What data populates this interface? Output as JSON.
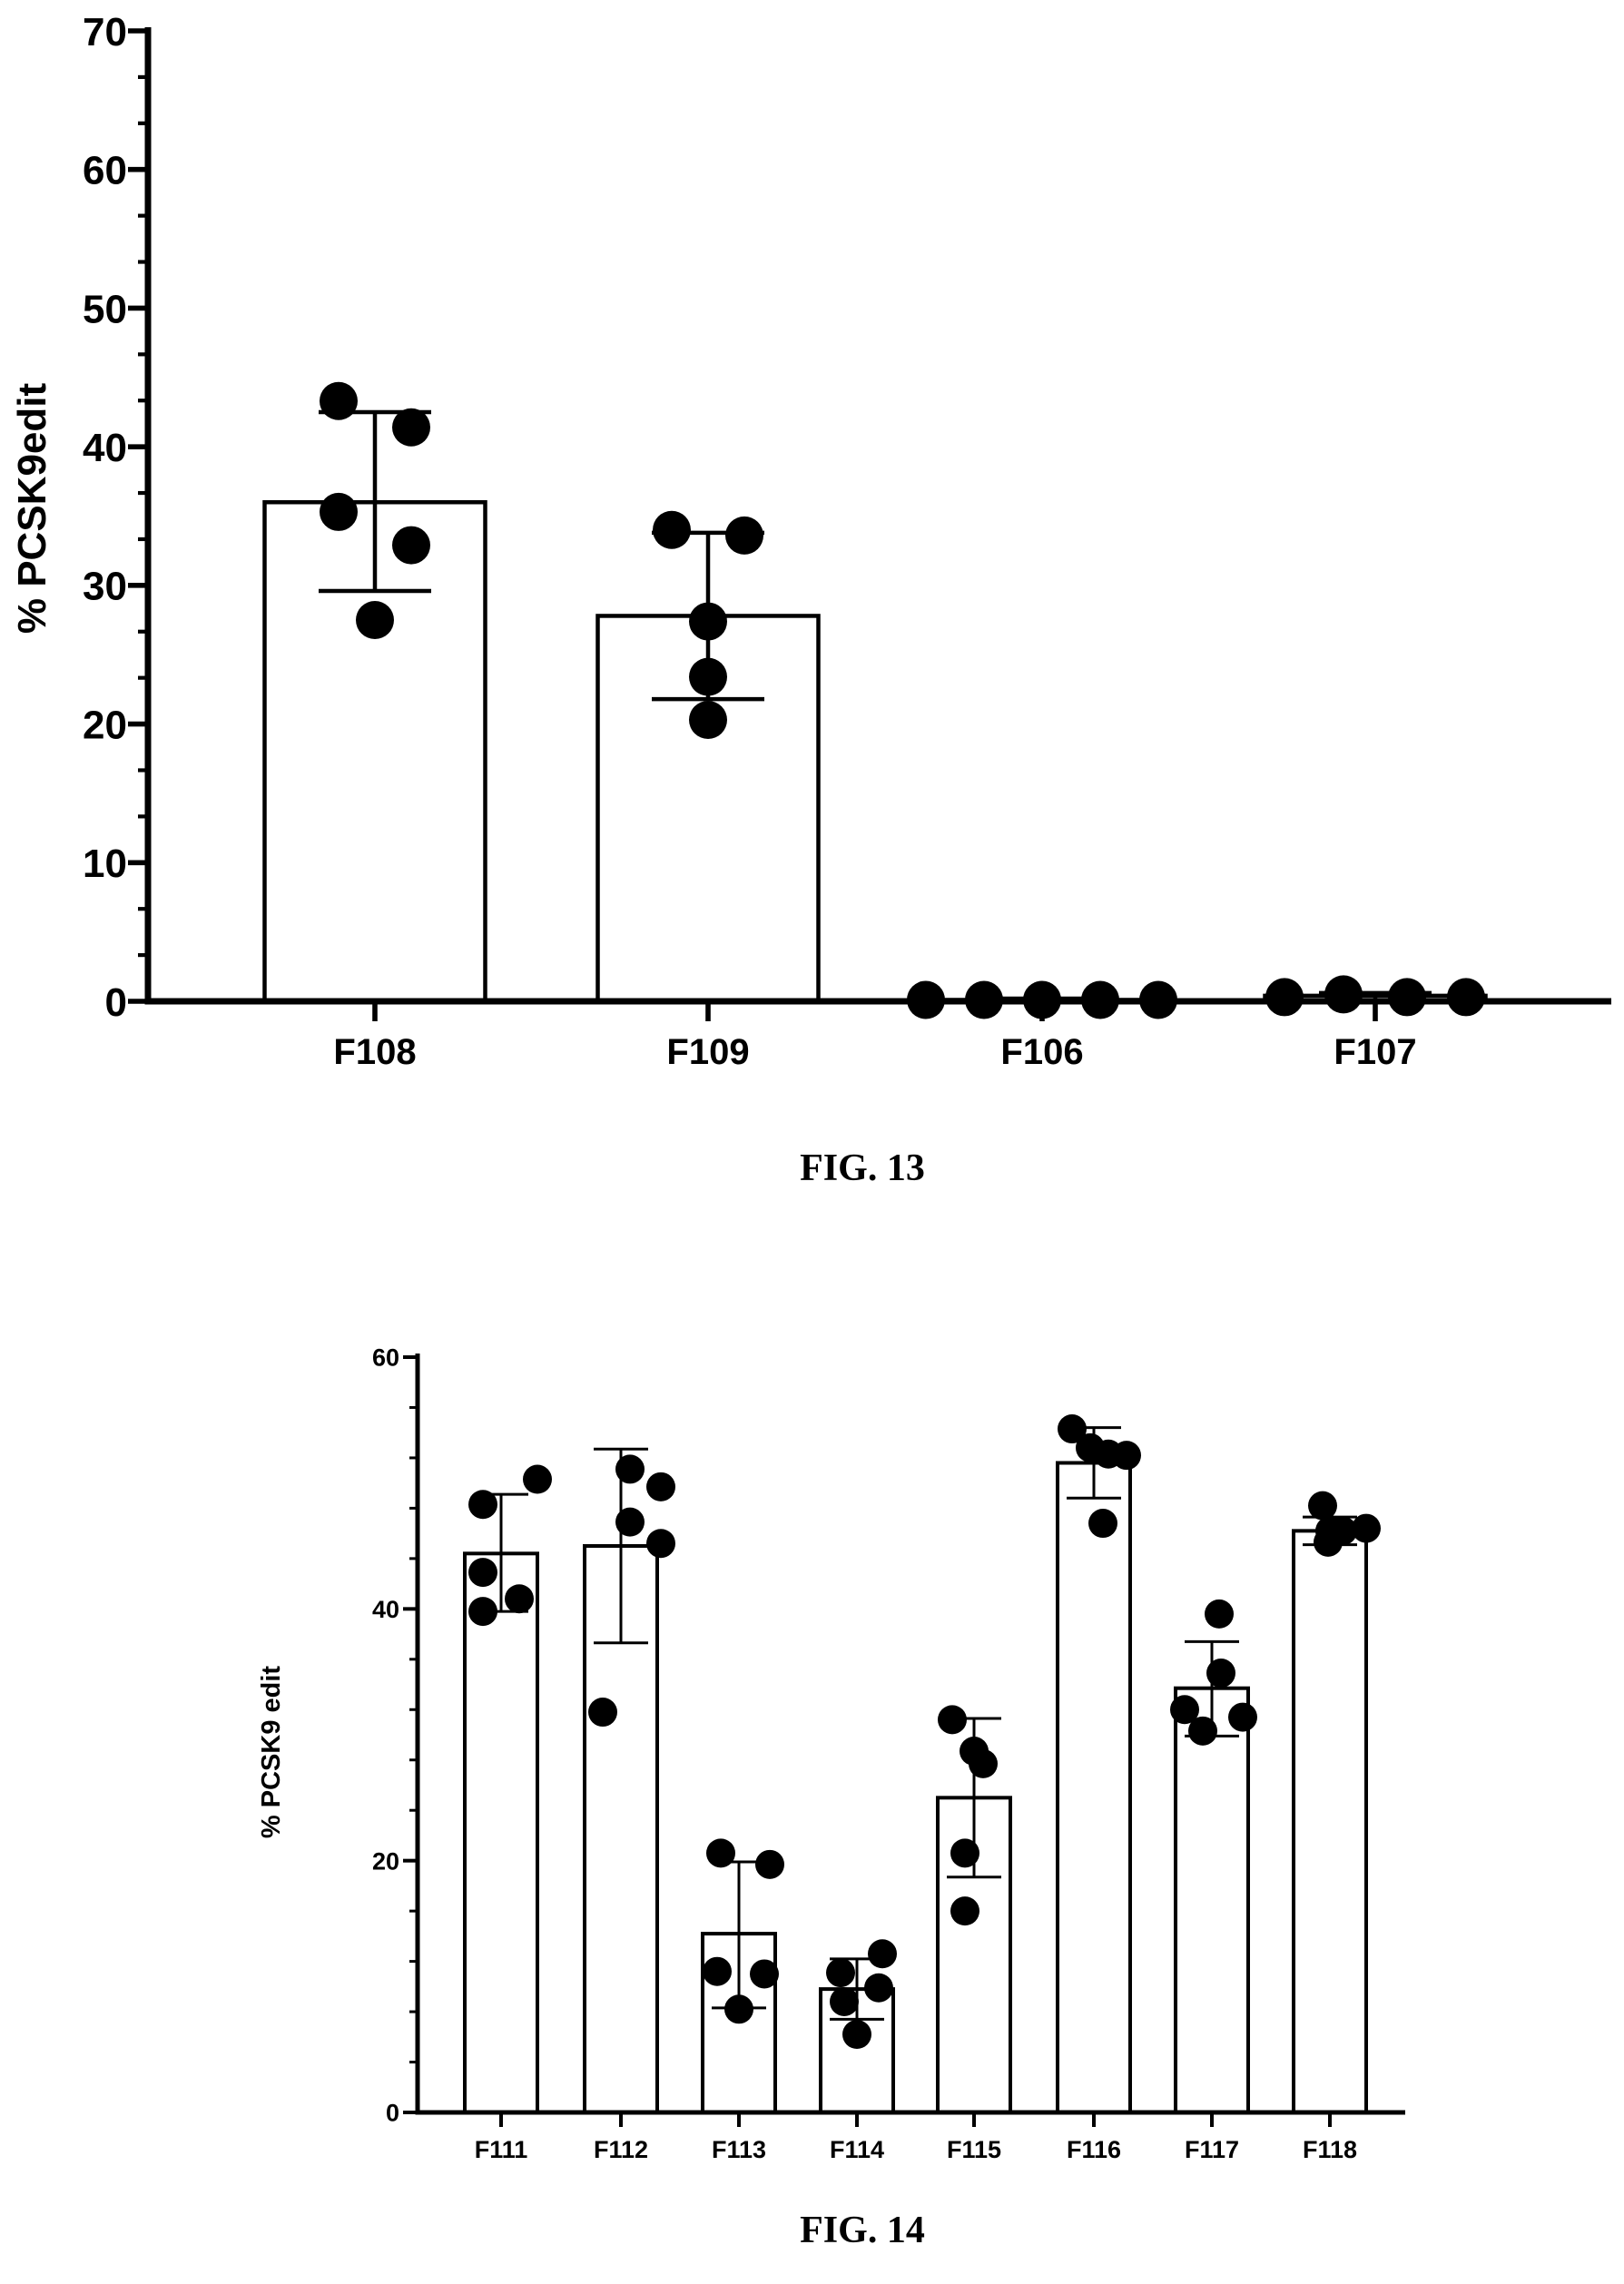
{
  "figures": [
    {
      "caption": "FIG. 13",
      "chart_data": {
        "type": "bar",
        "categories": [
          "F108",
          "F109",
          "F106",
          "F107"
        ],
        "values": [
          36,
          27.8,
          0.1,
          0.4
        ],
        "error": [
          [
            29.6,
            42.5
          ],
          [
            21.8,
            33.8
          ],
          [
            0,
            0.2
          ],
          [
            0,
            0.6
          ]
        ],
        "points": [
          [
            43.3,
            41.4,
            35.3,
            32.9,
            27.5
          ],
          [
            34,
            33.6,
            27.4,
            23.4,
            20.3
          ],
          [
            0.1,
            0.1,
            0.1,
            0.1,
            0.1
          ],
          [
            0.3,
            0.5,
            0.3,
            0.3
          ]
        ],
        "title": "",
        "xlabel": "",
        "ylabel": "% PCSK9edit",
        "ylim": [
          0,
          70
        ],
        "yticks": [
          "0",
          "10",
          "20",
          "30",
          "40",
          "50",
          "60",
          "70"
        ],
        "grid": false,
        "legend": "none"
      }
    },
    {
      "caption": "FIG. 14",
      "chart_data": {
        "type": "bar",
        "categories": [
          "F111",
          "F112",
          "F113",
          "F114",
          "F115",
          "F116",
          "F117",
          "F118"
        ],
        "values": [
          44.4,
          45,
          14.2,
          9.8,
          25,
          51.6,
          33.7,
          46.2
        ],
        "error": [
          [
            39.8,
            49.1
          ],
          [
            37.3,
            52.7
          ],
          [
            8.3,
            19.9
          ],
          [
            7.4,
            12.2
          ],
          [
            18.7,
            31.3
          ],
          [
            48.8,
            54.4
          ],
          [
            29.9,
            37.4
          ],
          [
            45.1,
            47.3
          ]
        ],
        "points": [
          [
            48.3,
            50.3,
            42.9,
            39.8,
            40.8
          ],
          [
            51.1,
            49.7,
            46.9,
            45.2,
            31.8
          ],
          [
            20.6,
            19.7,
            11.2,
            11,
            8.2
          ],
          [
            11.1,
            12.6,
            9.9,
            8.8,
            6.2
          ],
          [
            31.2,
            28.7,
            27.7,
            20.6,
            16
          ],
          [
            54.3,
            52.8,
            52.3,
            52.2,
            46.8
          ],
          [
            39.6,
            34.9,
            32,
            31.4,
            30.3
          ],
          [
            48.2,
            46.4,
            46.2,
            46.2,
            45.3
          ]
        ],
        "title": "",
        "xlabel": "",
        "ylabel": "% PCSK9 edit",
        "ylim": [
          0,
          60
        ],
        "yticks": [
          "0",
          "20",
          "40",
          "60"
        ],
        "grid": false,
        "legend": "none"
      }
    }
  ]
}
